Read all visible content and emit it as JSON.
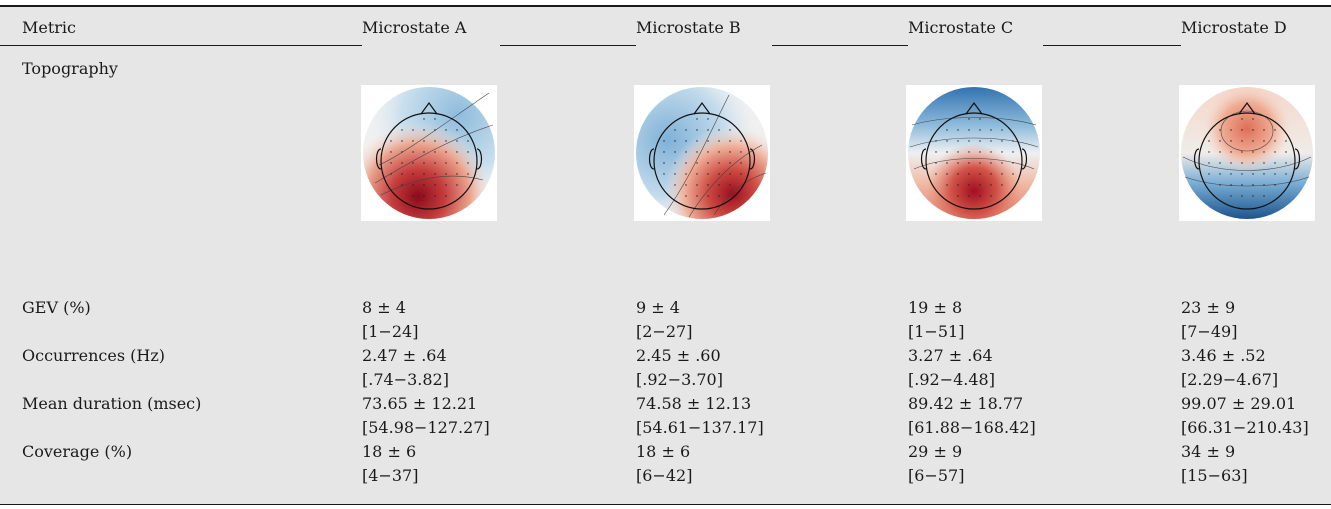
{
  "header": {
    "metric": "Metric",
    "columns": [
      "Microstate A",
      "Microstate B",
      "Microstate C",
      "Microstate D"
    ]
  },
  "topography_label": "Topography",
  "rows": [
    {
      "label": "GEV (%)",
      "mean": [
        "8 ± 4",
        "9 ± 4",
        "19 ± 8",
        "23 ± 9"
      ],
      "range": [
        "[1−24]",
        "[2−27]",
        "[1−51]",
        "[7−49]"
      ]
    },
    {
      "label": "Occurrences (Hz)",
      "mean": [
        "2.47 ± .64",
        "2.45 ± .60",
        "3.27 ± .64",
        "3.46 ± .52"
      ],
      "range": [
        "[.74−3.82]",
        "[.92−3.70]",
        "[.92−4.48]",
        "[2.29−4.67]"
      ]
    },
    {
      "label": "Mean duration (msec)",
      "mean": [
        "73.65 ± 12.21",
        "74.58 ± 12.13",
        "89.42 ± 18.77",
        "99.07 ± 29.01"
      ],
      "range": [
        "[54.98−127.27]",
        "[54.61−137.17]",
        "[61.88−168.42]",
        "[66.31−210.43]"
      ]
    },
    {
      "label": "Coverage (%)",
      "mean": [
        "18 ± 6",
        "18 ± 6",
        "29 ± 9",
        "34 ± 9"
      ],
      "range": [
        "[4−37]",
        "[6−42]",
        "[6−57]",
        "[15−63]"
      ]
    }
  ],
  "colors": {
    "positive": "#8b0a1a",
    "negative": "#1f5f9c",
    "neutral": "#f4f4f2",
    "table_background": "#e6e6e6"
  }
}
